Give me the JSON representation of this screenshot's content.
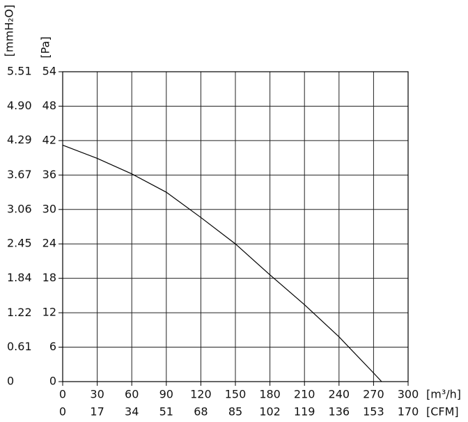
{
  "chart_data": {
    "type": "line",
    "x": [
      0,
      30,
      60,
      90,
      120,
      150,
      180,
      210,
      240,
      270,
      277
    ],
    "values": [
      41.2,
      38.9,
      36.2,
      33.0,
      28.6,
      24.0,
      18.6,
      13.4,
      7.8,
      1.5,
      0
    ],
    "color": "#000000",
    "xlim": [
      0,
      300
    ],
    "xticks": [
      0,
      30,
      60,
      90,
      120,
      150,
      180,
      210,
      240,
      270,
      300
    ],
    "x_label": "[m³/h]",
    "x2lim": [
      0,
      170
    ],
    "x2ticks": [
      0,
      17,
      34,
      51,
      68,
      85,
      102,
      119,
      136,
      153,
      170
    ],
    "x2_label": "[CFM]",
    "ylim": [
      0,
      54
    ],
    "yticks": [
      0,
      6,
      12,
      18,
      24,
      30,
      36,
      42,
      48,
      54
    ],
    "y_label": "[Pa]",
    "y2lim": [
      0,
      5.51
    ],
    "y2ticks": [
      0,
      0.61,
      1.22,
      1.84,
      2.45,
      3.06,
      3.67,
      4.29,
      {
        "value": 4.9,
        "label": "4.90"
      },
      5.51
    ],
    "y2_label": "[mmH₂O]",
    "grid": true
  }
}
